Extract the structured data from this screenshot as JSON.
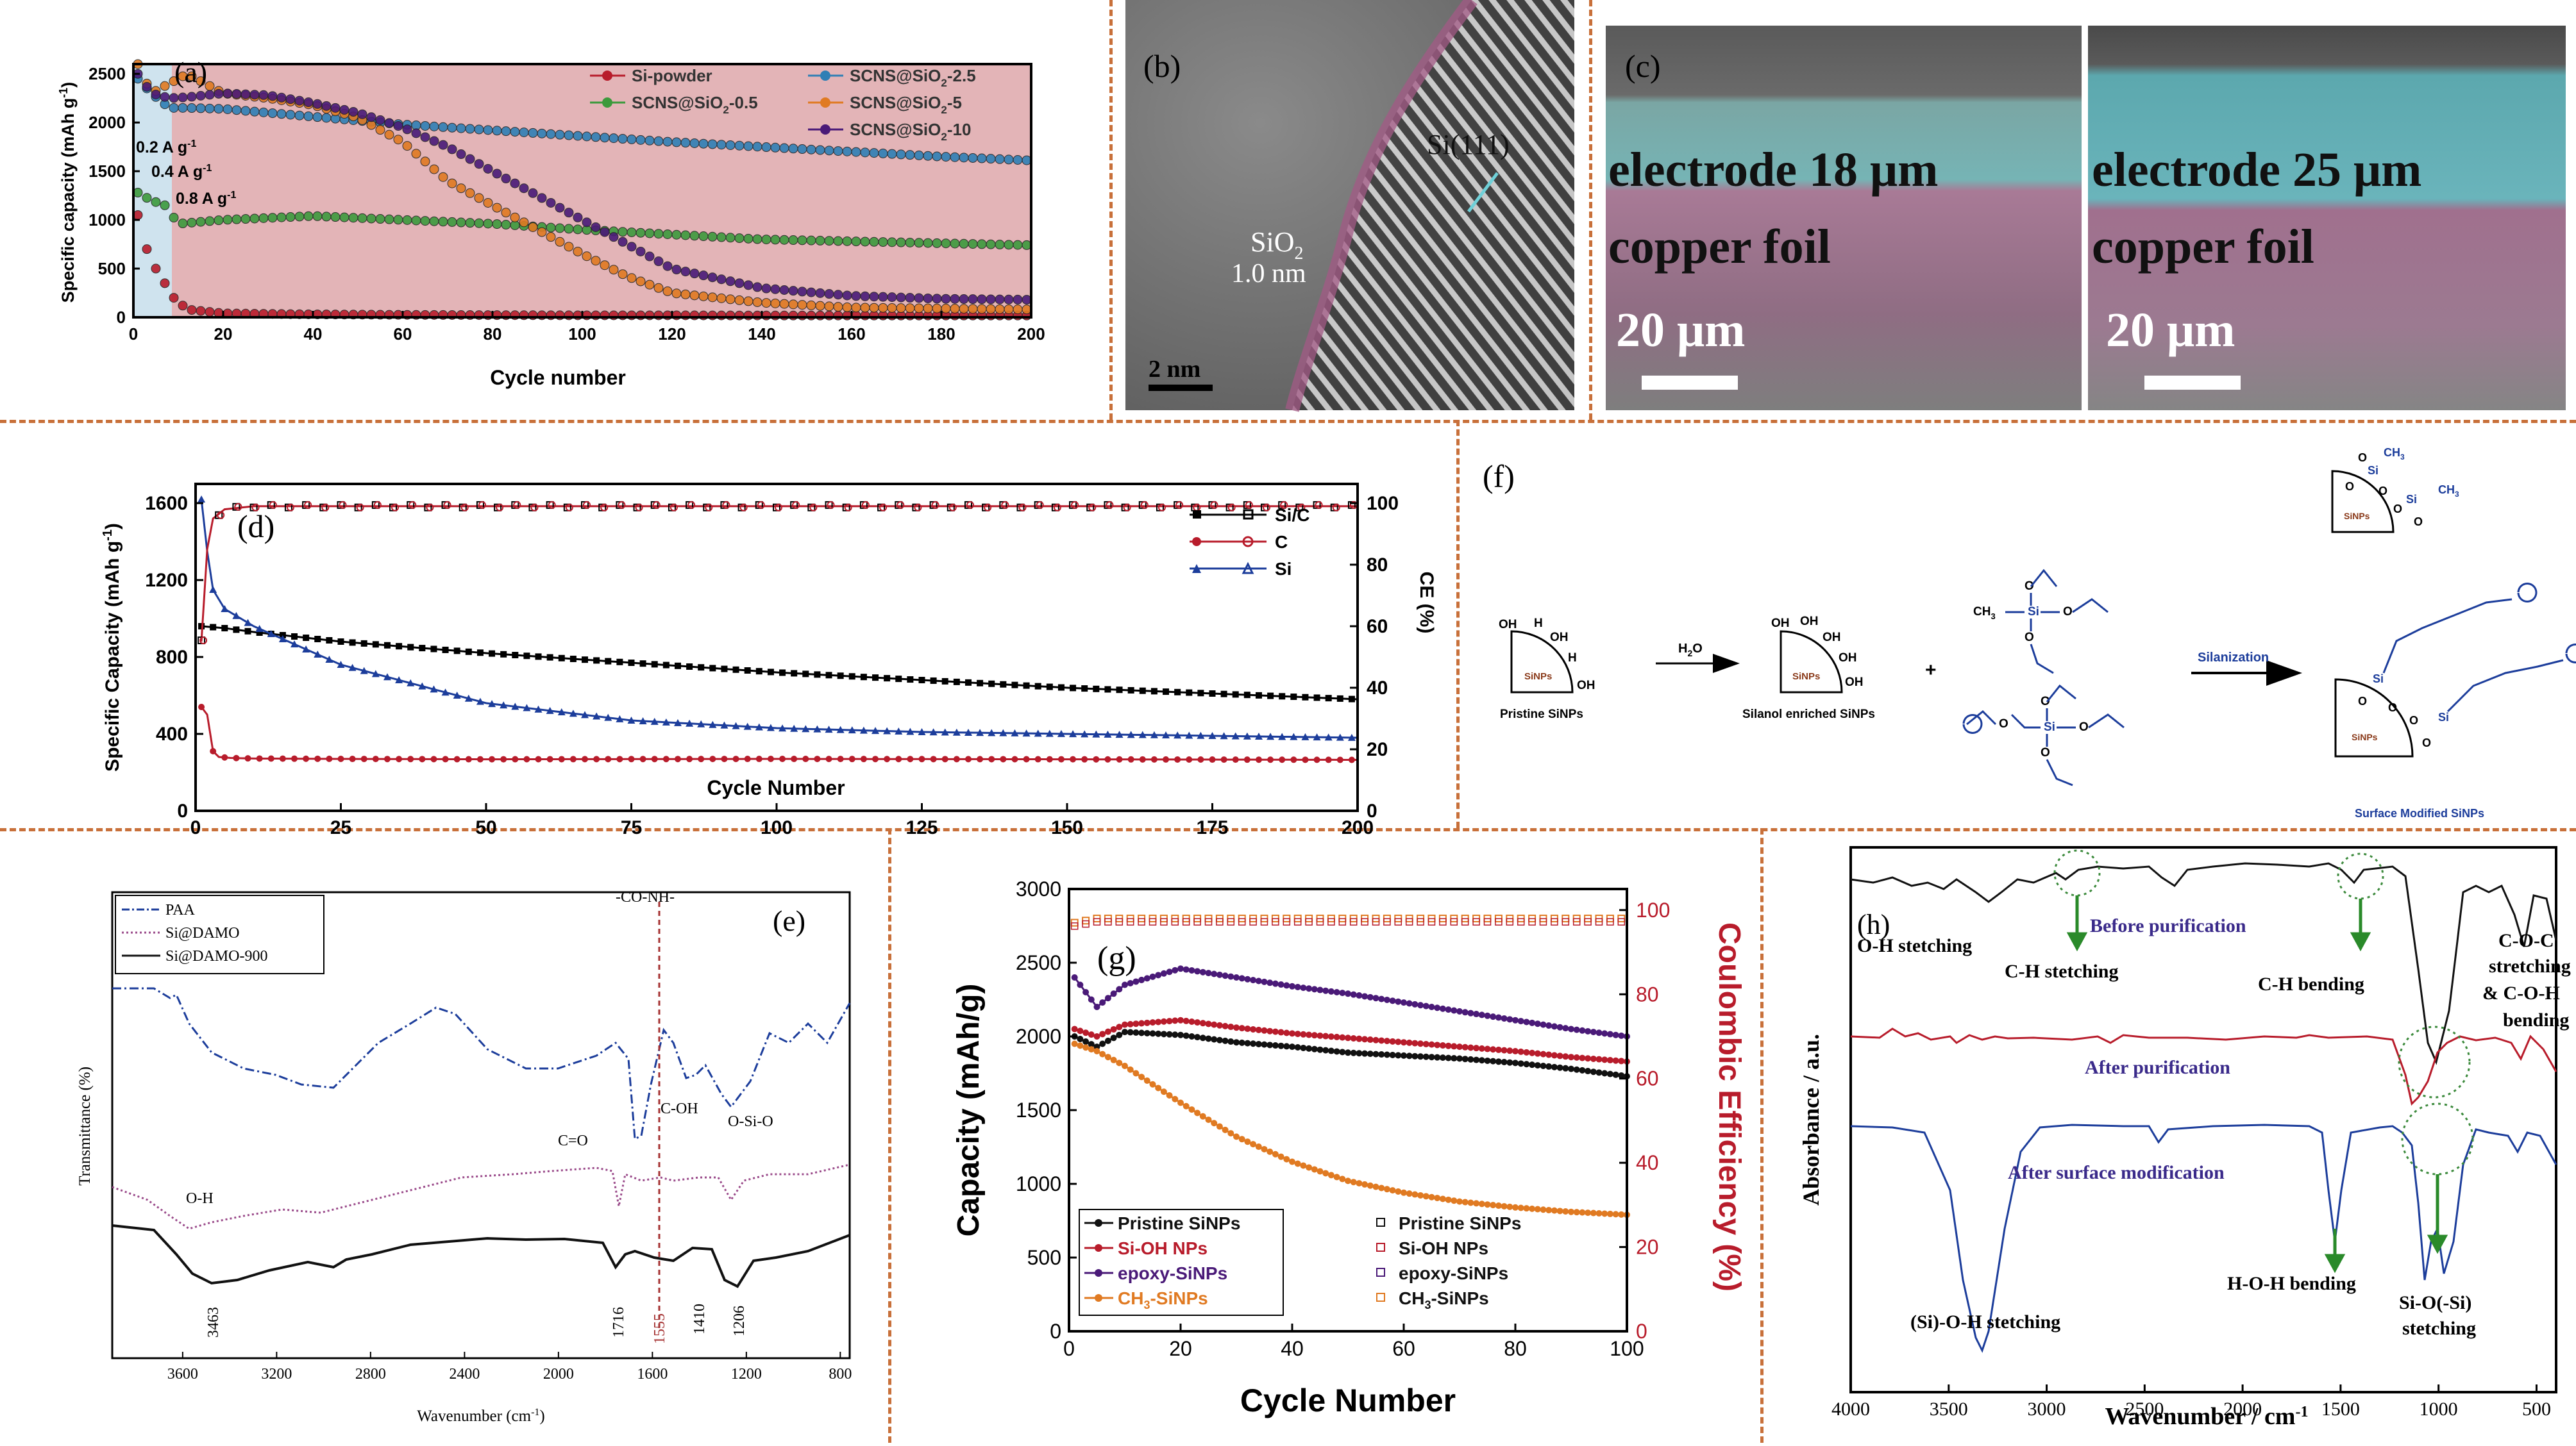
{
  "colors": {
    "separator": "#c8703a",
    "pink_bg": "#e3b4b7",
    "light_blue": "#cfe3ee",
    "black": "#111111",
    "red": "#b81c2b",
    "blue": "#1c3d9b",
    "green": "#3c9a3c",
    "orange": "#e07a22",
    "purple": "#4a1a78",
    "teal": "#2f7fb5",
    "darkgreen": "#2a8a2a"
  },
  "panel_a": {
    "tag": "(a)",
    "ylabel": "Specific capacity (mAh g",
    "ylabel_sup": "-1",
    "ylabel_end": ")",
    "xlabel": "Cycle number",
    "rate_labels": [
      "0.2 A g",
      "0.4 A g",
      "0.8 A g"
    ],
    "rate_sup": "-1",
    "xticks": [
      "0",
      "20",
      "40",
      "60",
      "80",
      "100",
      "120",
      "140",
      "160",
      "180",
      "200"
    ],
    "yticks": [
      "0",
      "500",
      "1000",
      "1500",
      "2000",
      "2500"
    ],
    "legend": [
      "Si-powder",
      "SCNS@SiO",
      "SCNS@SiO",
      "SCNS@SiO",
      "SCNS@SiO"
    ],
    "legend_sub": [
      "",
      "2",
      "2",
      "2",
      "2"
    ],
    "legend_suffix": [
      "",
      "-0.5",
      "-2.5",
      "-5",
      "-10"
    ]
  },
  "panel_b": {
    "tag": "(b)",
    "label_si": "Si(111)",
    "label_sio": "SiO",
    "label_sio_sub": "2",
    "label_thick": "1.0 nm",
    "scalebar": "2 nm"
  },
  "panel_c": {
    "tag": "(c)",
    "left_electrode": "electrode  18 μm",
    "right_electrode": "electrode  25 μm",
    "copper": "copper foil",
    "scalebar": "20 μm"
  },
  "panel_d": {
    "tag": "(d)",
    "ylabel": "Specific Capacity (mAh g",
    "ylabel_sup": "-1",
    "ylabel_end": ")",
    "y2label": "CE (%)",
    "xlabel": "Cycle Number",
    "xticks": [
      "0",
      "25",
      "50",
      "75",
      "100",
      "125",
      "150",
      "175",
      "200"
    ],
    "yticks": [
      "0",
      "400",
      "800",
      "1200",
      "1600"
    ],
    "y2ticks": [
      "0",
      "20",
      "40",
      "60",
      "80",
      "100"
    ],
    "legend": [
      "Si/C",
      "C",
      "Si"
    ]
  },
  "panel_e": {
    "tag": "(e)",
    "ylabel": "Transmittance (%)",
    "xlabel": "Wavenumber (cm",
    "xlabel_sup": "-1",
    "xlabel_end": ")",
    "legend": [
      "PAA",
      "Si@DAMO",
      "Si@DAMO-900"
    ],
    "annotations": [
      "-CO-NH-",
      "C=O",
      "C-OH",
      "O-Si-O",
      "O-H",
      "3463",
      "1716",
      "1555",
      "1410",
      "1206"
    ],
    "xticks": [
      "3600",
      "3200",
      "2800",
      "2400",
      "2000",
      "1600",
      "1200",
      "800"
    ]
  },
  "panel_f": {
    "tag": "(f)",
    "h2o2": "H",
    "h2o2_sub": "2",
    "h2o2_o": "O",
    "silanization": "Silanization",
    "plus": "+",
    "pristine": "Pristine SiNPs",
    "silanol": "Silanol enriched SiNPs",
    "surface": "Surface Modified SiNPs",
    "sinps": "SiNPs",
    "si": "Si",
    "o": "O",
    "oh": "OH",
    "h": "H",
    "ch3": "CH",
    "ch3_sub": "3"
  },
  "panel_g": {
    "tag": "(g)",
    "ylabel": "Capacity (mAh/g)",
    "y2label": "Coulombic Efficiency (%)",
    "xlabel": "Cycle Number",
    "xticks": [
      "0",
      "20",
      "40",
      "60",
      "80",
      "100"
    ],
    "yticks": [
      "0",
      "500",
      "1000",
      "1500",
      "2000",
      "2500",
      "3000"
    ],
    "y2ticks": [
      "0",
      "20",
      "40",
      "60",
      "80",
      "100"
    ],
    "legend_left": [
      "Pristine SiNPs",
      "Si-OH NPs",
      "epoxy-SiNPs",
      "CH"
    ],
    "legend_left_sub": [
      "",
      "",
      "",
      "3"
    ],
    "legend_left_suffix": [
      "",
      "",
      "",
      "-SiNPs"
    ],
    "legend_right": [
      "Pristine SiNPs",
      "Si-OH NPs",
      "epoxy-SiNPs",
      "CH"
    ],
    "legend_right_sub": [
      "",
      "",
      "",
      "3"
    ],
    "legend_right_suffix": [
      "",
      "",
      "",
      "-SiNPs"
    ]
  },
  "panel_h": {
    "tag": "(h)",
    "ylabel": "Absorbance / a.u.",
    "xlabel": "Wavenumber / cm",
    "xlabel_sup": "-1",
    "xticks": [
      "4000",
      "3500",
      "3000",
      "2500",
      "2000",
      "1500",
      "1000",
      "500"
    ],
    "labels": {
      "before": "Before purification",
      "after": "After purification",
      "modif": "After surface modification",
      "oh_stretch": "O-H stetching",
      "ch_stretch": "C-H stetching",
      "ch_bend": "C-H bending",
      "coc1": "C-O-C",
      "coc2": "stretching",
      "coc3": "& C-O-H",
      "coc4": "bending",
      "hoh": "H-O-H bending",
      "sioh": "(Si)-O-H stetching",
      "sio1": "Si-O(-Si)",
      "sio2": "stetching"
    }
  },
  "chart_data": [
    {
      "panel": "a",
      "type": "scatter",
      "xlabel": "Cycle number",
      "ylabel": "Specific capacity (mAh g-1)",
      "xlim": [
        0,
        200
      ],
      "ylim": [
        0,
        2600
      ],
      "series": [
        {
          "name": "Si-powder",
          "x": [
            1,
            3,
            5,
            7,
            9,
            12,
            20,
            40,
            60,
            80,
            100,
            120,
            140,
            160,
            180,
            200
          ],
          "values": [
            1050,
            700,
            500,
            350,
            200,
            80,
            40,
            30,
            25,
            22,
            20,
            20,
            18,
            18,
            18,
            18
          ]
        },
        {
          "name": "SCNS@SiO2-0.5",
          "x": [
            1,
            4,
            7,
            10,
            20,
            40,
            60,
            80,
            100,
            120,
            140,
            160,
            180,
            200
          ],
          "values": [
            1280,
            1200,
            1150,
            960,
            1000,
            1040,
            1000,
            960,
            900,
            850,
            800,
            780,
            760,
            740
          ]
        },
        {
          "name": "SCNS@SiO2-2.5",
          "x": [
            1,
            4,
            8,
            12,
            20,
            40,
            60,
            80,
            100,
            120,
            140,
            160,
            180,
            200
          ],
          "values": [
            2450,
            2300,
            2150,
            2150,
            2140,
            2060,
            1980,
            1920,
            1860,
            1800,
            1750,
            1700,
            1650,
            1610
          ]
        },
        {
          "name": "SCNS@SiO2-5",
          "x": [
            1,
            4,
            8,
            12,
            20,
            30,
            40,
            50,
            60,
            70,
            80,
            90,
            100,
            110,
            120,
            140,
            160,
            180,
            200
          ],
          "values": [
            2600,
            2300,
            2400,
            2500,
            2300,
            2250,
            2180,
            2050,
            1800,
            1400,
            1150,
            900,
            650,
            420,
            250,
            150,
            100,
            90,
            80
          ]
        },
        {
          "name": "SCNS@SiO2-10",
          "x": [
            1,
            4,
            8,
            12,
            20,
            30,
            40,
            50,
            60,
            70,
            80,
            90,
            100,
            110,
            120,
            140,
            160,
            180,
            200
          ],
          "values": [
            2500,
            2300,
            2250,
            2260,
            2300,
            2280,
            2200,
            2100,
            1950,
            1750,
            1500,
            1250,
            1000,
            750,
            500,
            300,
            220,
            190,
            180
          ]
        }
      ]
    },
    {
      "panel": "d",
      "type": "line",
      "xlabel": "Cycle Number",
      "ylabel": "Specific Capacity (mAh g-1)",
      "y2label": "CE (%)",
      "xlim": [
        0,
        200
      ],
      "ylim": [
        0,
        1700
      ],
      "y2lim": [
        0,
        106.25
      ],
      "series": [
        {
          "name": "Si/C",
          "x": [
            1,
            5,
            10,
            25,
            50,
            75,
            100,
            125,
            150,
            175,
            200
          ],
          "values": [
            960,
            950,
            930,
            880,
            820,
            770,
            720,
            680,
            640,
            610,
            580
          ]
        },
        {
          "name": "C",
          "x": [
            1,
            2,
            3,
            4,
            6,
            10,
            25,
            50,
            100,
            150,
            200
          ],
          "values": [
            540,
            500,
            310,
            280,
            275,
            272,
            270,
            268,
            270,
            268,
            265
          ]
        },
        {
          "name": "Si",
          "x": [
            1,
            2,
            3,
            5,
            10,
            25,
            50,
            75,
            100,
            125,
            150,
            175,
            200
          ],
          "values": [
            1620,
            1350,
            1150,
            1050,
            960,
            760,
            560,
            470,
            430,
            410,
            400,
            390,
            380
          ]
        },
        {
          "name": "CE",
          "x": [
            1,
            2,
            3,
            5,
            10,
            50,
            100,
            150,
            200
          ],
          "values": [
            55,
            85,
            95,
            98,
            99,
            99,
            99,
            99,
            99
          ]
        }
      ]
    },
    {
      "panel": "e",
      "type": "line",
      "xlabel": "Wavenumber (cm-1)",
      "ylabel": "Transmittance (%)",
      "xlim": [
        3900,
        760
      ],
      "series": [
        {
          "name": "PAA"
        },
        {
          "name": "Si@DAMO"
        },
        {
          "name": "Si@DAMO-900"
        }
      ]
    },
    {
      "panel": "g",
      "type": "line",
      "xlabel": "Cycle Number",
      "ylabel": "Capacity (mAh/g)",
      "y2label": "Coulombic Efficiency (%)",
      "xlim": [
        0,
        100
      ],
      "ylim": [
        0,
        3000
      ],
      "y2lim": [
        0,
        105
      ],
      "series": [
        {
          "name": "Pristine SiNPs",
          "x": [
            1,
            5,
            10,
            20,
            30,
            40,
            50,
            60,
            70,
            80,
            90,
            100
          ],
          "values": [
            2000,
            1930,
            2030,
            2010,
            1960,
            1930,
            1890,
            1870,
            1850,
            1820,
            1780,
            1730
          ]
        },
        {
          "name": "Si-OH NPs",
          "x": [
            1,
            5,
            10,
            20,
            30,
            40,
            50,
            60,
            70,
            80,
            90,
            100
          ],
          "values": [
            2050,
            2000,
            2080,
            2110,
            2060,
            2020,
            1990,
            1960,
            1930,
            1900,
            1860,
            1830
          ]
        },
        {
          "name": "epoxy-SiNPs",
          "x": [
            1,
            5,
            10,
            20,
            30,
            40,
            50,
            60,
            70,
            80,
            90,
            100
          ],
          "values": [
            2400,
            2200,
            2350,
            2460,
            2400,
            2340,
            2290,
            2230,
            2170,
            2110,
            2050,
            2000
          ]
        },
        {
          "name": "CH3-SiNPs",
          "x": [
            1,
            5,
            10,
            20,
            30,
            40,
            50,
            60,
            70,
            80,
            90,
            100
          ],
          "values": [
            1950,
            1900,
            1800,
            1550,
            1320,
            1150,
            1020,
            940,
            880,
            840,
            810,
            790
          ]
        },
        {
          "name": "CE",
          "x": [
            1,
            5,
            10,
            30,
            50,
            70,
            100
          ],
          "values": [
            97,
            98,
            98,
            98,
            98,
            98,
            98
          ]
        }
      ]
    },
    {
      "panel": "h",
      "type": "line",
      "xlabel": "Wavenumber / cm-1",
      "ylabel": "Absorbance / a.u.",
      "xlim": [
        4000,
        400
      ],
      "series": [
        {
          "name": "Before purification"
        },
        {
          "name": "After purification"
        },
        {
          "name": "After surface modification"
        }
      ]
    }
  ]
}
